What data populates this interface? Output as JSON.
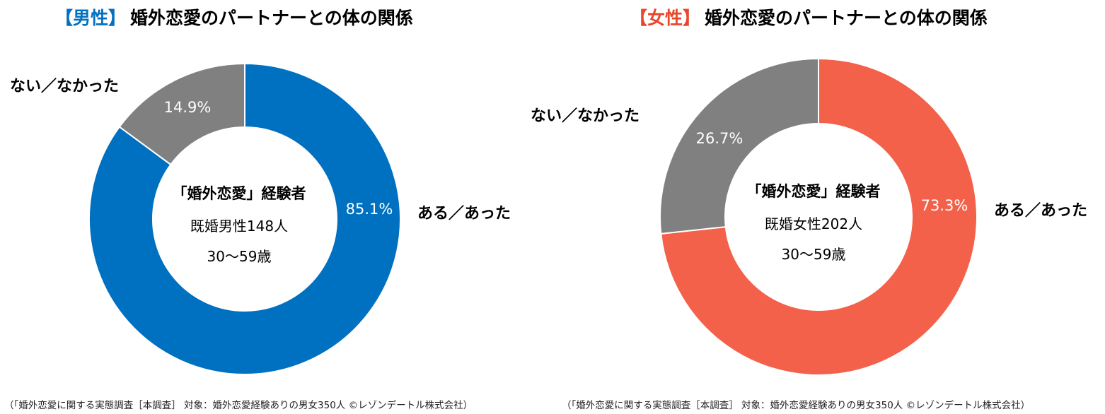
{
  "charts": [
    {
      "tag": "【男性】",
      "title": "婚外恋愛のパートナーとの体の関係",
      "center_head": "「婚外恋愛」経験者",
      "center_line1": "既婚男性148人",
      "center_line2": "30～59歳",
      "yes_label": "ある／あった",
      "no_label": "ない／なかった",
      "yes_pct_text": "85.1%",
      "no_pct_text": "14.9%",
      "source": "（「婚外恋愛に関する実態調査［本調査］ 対象：婚外恋愛経験ありの男女350人 ©レゾンデートル株式会社）",
      "colors": {
        "yes": "#0070c0",
        "no": "#808080"
      }
    },
    {
      "tag": "【女性】",
      "title": "婚外恋愛のパートナーとの体の関係",
      "center_head": "「婚外恋愛」経験者",
      "center_line1": "既婚女性202人",
      "center_line2": "30～59歳",
      "yes_label": "ある／あった",
      "no_label": "ない／なかった",
      "yes_pct_text": "73.3%",
      "no_pct_text": "26.7%",
      "source": "（「婚外恋愛に関する実態調査［本調査］ 対象：婚外恋愛経験ありの男女350人 ©レゾンデートル株式会社）",
      "colors": {
        "yes": "#f4614a",
        "no": "#808080"
      }
    }
  ],
  "chart_data": [
    {
      "type": "pie",
      "variant": "donut",
      "title": "【男性】婚外恋愛のパートナーとの体の関係",
      "categories": [
        "ある／あった",
        "ない／なかった"
      ],
      "values": [
        85.1,
        14.9
      ],
      "unit": "%",
      "sample": "既婚男性148人 30～59歳"
    },
    {
      "type": "pie",
      "variant": "donut",
      "title": "【女性】婚外恋愛のパートナーとの体の関係",
      "categories": [
        "ある／あった",
        "ない／なかった"
      ],
      "values": [
        73.3,
        26.7
      ],
      "unit": "%",
      "sample": "既婚女性202人 30～59歳"
    }
  ]
}
